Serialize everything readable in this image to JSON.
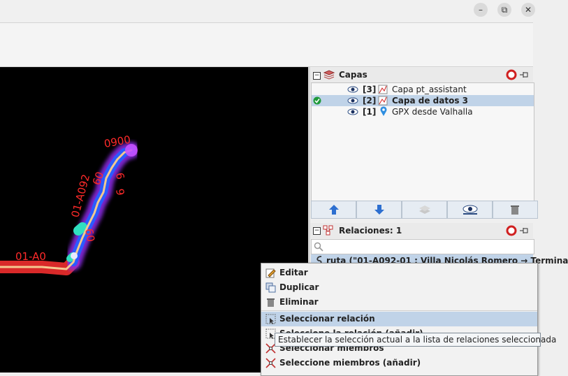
{
  "window": {
    "minimize_symbol": "–",
    "restore_symbol": "⧉",
    "close_symbol": "✕"
  },
  "map": {
    "labels": [
      "0900",
      "01-A092",
      "01-A0",
      "6",
      "60",
      "9",
      "60"
    ]
  },
  "layers_panel": {
    "title": "Capas",
    "layers": [
      {
        "index": "[3]",
        "name": "Capa pt_assistant",
        "selected": false,
        "active": false
      },
      {
        "index": "[2]",
        "name": "Capa de datos 3",
        "selected": true,
        "active": true
      },
      {
        "index": "[1]",
        "name": "GPX desde Valhalla",
        "selected": false,
        "active": false
      }
    ]
  },
  "relations_panel": {
    "title": "Relaciones: 1",
    "search_value": "",
    "selected_relation": "ruta (\"01-A092-01 : Villa Nicolás Romero → Termina"
  },
  "context_menu": {
    "items": [
      {
        "label": "Editar",
        "icon": "edit-icon",
        "highlighted": false
      },
      {
        "label": "Duplicar",
        "icon": "duplicate-icon",
        "highlighted": false
      },
      {
        "label": "Eliminar",
        "icon": "trash-icon",
        "highlighted": false
      },
      {
        "label": "Seleccionar relación",
        "icon": "select-relation-icon",
        "highlighted": true
      },
      {
        "label": "Seleccione la relación (añadir)",
        "icon": "select-relation-add-icon",
        "highlighted": false
      },
      {
        "label": "Seleccionar miembros",
        "icon": "select-members-icon",
        "highlighted": false
      },
      {
        "label": "Seleccione miembros (añadir)",
        "icon": "select-members-add-icon",
        "highlighted": false
      }
    ],
    "tooltip": "Establecer la selección actual a la lista de relaciones seleccionada"
  },
  "colors": {
    "selection": "#c0d3e8",
    "track_label": "#ff2020",
    "track_core": "#f4c890"
  }
}
